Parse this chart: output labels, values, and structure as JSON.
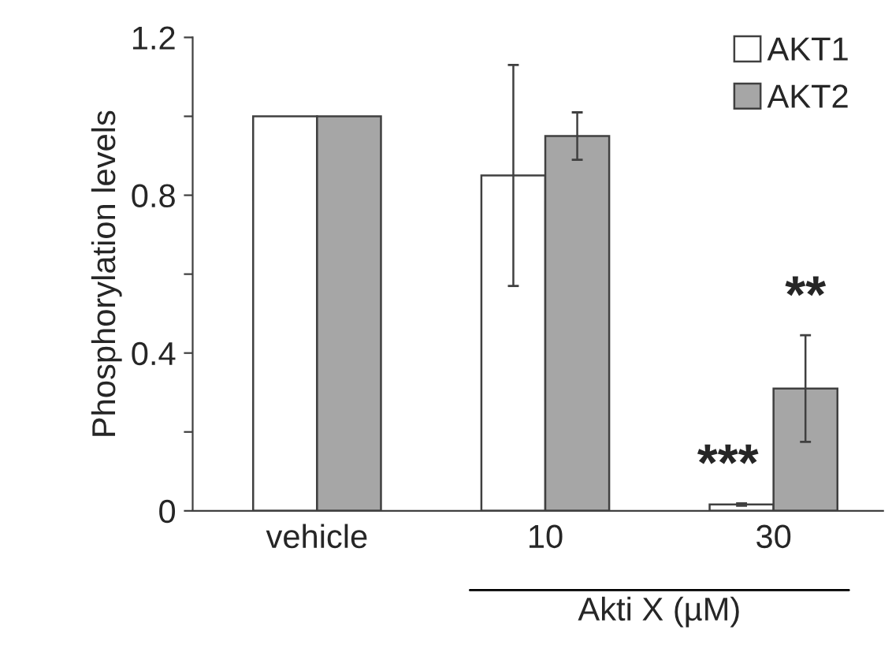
{
  "chart_data": {
    "type": "bar",
    "ylabel": "Phosphorylation levels",
    "xlabel": "Akti X (µM)",
    "categories": [
      "vehicle",
      "10",
      "30"
    ],
    "series": [
      {
        "name": "AKT1",
        "color": "#ffffff",
        "values": [
          1.0,
          0.85,
          0.016
        ],
        "errors": [
          null,
          0.28,
          0.003
        ]
      },
      {
        "name": "AKT2",
        "color": "#a6a6a6",
        "values": [
          1.0,
          0.95,
          0.31
        ],
        "errors": [
          null,
          0.06,
          0.135
        ]
      }
    ],
    "ylim": [
      0,
      1.2
    ],
    "yticks": [
      0,
      {
        "value": 0.2,
        "label": null
      },
      0.4,
      {
        "value": 0.6,
        "label": null
      },
      0.8,
      {
        "value": 1.0,
        "label": null
      },
      1.2
    ],
    "annotations": [
      {
        "text": "***",
        "x": "30",
        "y": 0.016
      },
      {
        "text": "**",
        "x": "30",
        "y": 0.31
      }
    ],
    "legend": "top right",
    "grid": false
  }
}
